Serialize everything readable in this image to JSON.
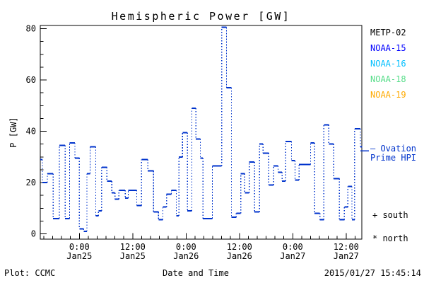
{
  "title": "Hemispheric Power [GW]",
  "y_axis_label": "P [GW]",
  "footer": {
    "plot_credit": "Plot: CCMC",
    "x_axis_title": "Date and Time",
    "timestamp": "2015/01/27 15:45:14"
  },
  "legend": {
    "satellites": [
      {
        "label": "METP-02",
        "color": "#000000"
      },
      {
        "label": "NOAA-15",
        "color": "#0000ff"
      },
      {
        "label": "NOAA-16",
        "color": "#00bfff"
      },
      {
        "label": "NOAA-18",
        "color": "#55dd88"
      },
      {
        "label": "NOAA-19",
        "color": "#ffaa00"
      }
    ],
    "ovation_line1": "— Ovation",
    "ovation_line2": "Prime HPI",
    "ovation_color": "#0033cc",
    "south_marker": "+ south",
    "north_marker": "* north"
  },
  "chart_data": {
    "type": "line",
    "subtype": "step-post",
    "title": "Hemispheric Power [GW]",
    "xlabel": "Date and Time",
    "ylabel": "P [GW]",
    "units": "GW",
    "grid": false,
    "legend_position": "right-outside",
    "ylim": [
      0,
      80
    ],
    "yticks": [
      0,
      20,
      40,
      60,
      80
    ],
    "y_minor_step": 5,
    "x_hours_range": [
      -8.8,
      63.6
    ],
    "x_hours_reference": "hours from Jan25 00:00",
    "x_minor_step_hours": 2,
    "x_major_ticks": [
      {
        "t": 0,
        "time": "0:00",
        "date": "Jan25"
      },
      {
        "t": 12,
        "time": "12:00",
        "date": "Jan25"
      },
      {
        "t": 24,
        "time": "0:00",
        "date": "Jan26"
      },
      {
        "t": 36,
        "time": "12:00",
        "date": "Jan26"
      },
      {
        "t": 48,
        "time": "0:00",
        "date": "Jan27"
      },
      {
        "t": 60,
        "time": "12:00",
        "date": "Jan27"
      }
    ],
    "series": [
      {
        "name": "Ovation Prime HPI",
        "color": "#0033cc",
        "line_style": "solid horizontal steps with dotted vertical connectors",
        "t_end": 63.6,
        "steps_t_hours_value_gw": [
          [
            -8.8,
            29
          ],
          [
            -8.3,
            20
          ],
          [
            -7.2,
            23.5
          ],
          [
            -5.9,
            6
          ],
          [
            -4.5,
            34.5
          ],
          [
            -3.2,
            6
          ],
          [
            -2.2,
            35.5
          ],
          [
            -1.0,
            29.5
          ],
          [
            0.0,
            2
          ],
          [
            1.0,
            1
          ],
          [
            1.7,
            23.5
          ],
          [
            2.4,
            34
          ],
          [
            3.7,
            7
          ],
          [
            4.3,
            9
          ],
          [
            5.0,
            26
          ],
          [
            6.2,
            20.5
          ],
          [
            7.3,
            16
          ],
          [
            8.0,
            13.5
          ],
          [
            8.9,
            17
          ],
          [
            10.3,
            14
          ],
          [
            11.0,
            17
          ],
          [
            12.9,
            11
          ],
          [
            14.0,
            29
          ],
          [
            15.4,
            24.5
          ],
          [
            16.7,
            8.5
          ],
          [
            17.8,
            5.5
          ],
          [
            18.8,
            10.5
          ],
          [
            19.6,
            15.5
          ],
          [
            20.7,
            17
          ],
          [
            21.8,
            7
          ],
          [
            22.4,
            30
          ],
          [
            23.2,
            39.5
          ],
          [
            24.3,
            9
          ],
          [
            25.3,
            49
          ],
          [
            26.2,
            37
          ],
          [
            27.2,
            29.5
          ],
          [
            27.8,
            6
          ],
          [
            29.9,
            26.5
          ],
          [
            32.0,
            80.5
          ],
          [
            33.1,
            57
          ],
          [
            34.2,
            6.5
          ],
          [
            35.3,
            8
          ],
          [
            36.3,
            23.5
          ],
          [
            37.2,
            16
          ],
          [
            38.2,
            28
          ],
          [
            39.4,
            8.5
          ],
          [
            40.5,
            35
          ],
          [
            41.3,
            31.5
          ],
          [
            42.6,
            19
          ],
          [
            43.7,
            26.5
          ],
          [
            44.7,
            24
          ],
          [
            45.6,
            20.5
          ],
          [
            46.4,
            36
          ],
          [
            47.7,
            28.5
          ],
          [
            48.5,
            21
          ],
          [
            49.4,
            27
          ],
          [
            52.0,
            35.5
          ],
          [
            52.9,
            8
          ],
          [
            54.1,
            5.5
          ],
          [
            55.0,
            42.5
          ],
          [
            56.1,
            35
          ],
          [
            57.2,
            21.5
          ],
          [
            58.5,
            5.5
          ],
          [
            59.6,
            10.5
          ],
          [
            60.4,
            18.5
          ],
          [
            61.3,
            5.5
          ],
          [
            61.9,
            41
          ],
          [
            63.2,
            34
          ]
        ]
      }
    ]
  }
}
